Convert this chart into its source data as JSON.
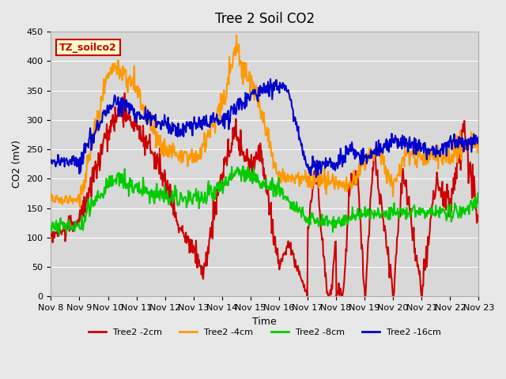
{
  "title": "Tree 2 Soil CO2",
  "xlabel": "Time",
  "ylabel": "CO2 (mV)",
  "ylim": [
    0,
    450
  ],
  "xlim": [
    0,
    15
  ],
  "background_color": "#e8e8e8",
  "plot_bg_color": "#d8d8d8",
  "grid_color": "#ffffff",
  "label_box_text": "TZ_soilco2",
  "label_box_facecolor": "#ffffcc",
  "label_box_edgecolor": "#cc0000",
  "xtick_labels": [
    "Nov 8",
    "Nov 9",
    "Nov 10",
    "Nov 11",
    "Nov 12",
    "Nov 13",
    "Nov 14",
    "Nov 15",
    "Nov 16",
    "Nov 17",
    "Nov 18",
    "Nov 19",
    "Nov 20",
    "Nov 21",
    "Nov 22",
    "Nov 23"
  ],
  "ytick_values": [
    0,
    50,
    100,
    150,
    200,
    250,
    300,
    350,
    400,
    450
  ],
  "series": {
    "Tree2 -2cm": {
      "color": "#cc0000",
      "linewidth": 1.5
    },
    "Tree2 -4cm": {
      "color": "#ff9900",
      "linewidth": 1.5
    },
    "Tree2 -8cm": {
      "color": "#00cc00",
      "linewidth": 1.5
    },
    "Tree2 -16cm": {
      "color": "#0000cc",
      "linewidth": 1.5
    }
  },
  "legend_items": [
    {
      "label": "Tree2 -2cm",
      "color": "#cc0000"
    },
    {
      "label": "Tree2 -4cm",
      "color": "#ff9900"
    },
    {
      "label": "Tree2 -8cm",
      "color": "#00cc00"
    },
    {
      "label": "Tree2 -16cm",
      "color": "#0000cc"
    }
  ]
}
